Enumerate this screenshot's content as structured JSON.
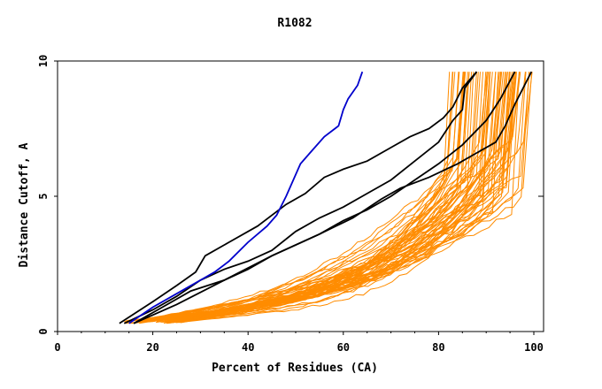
{
  "chart_data": {
    "type": "line",
    "title": "R1082",
    "xlabel": "Percent of Residues (CA)",
    "ylabel": "Distance Cutoff, A",
    "xlim": [
      0,
      102
    ],
    "ylim": [
      0,
      10
    ],
    "x_ticks": [
      0,
      20,
      40,
      60,
      80,
      100
    ],
    "y_ticks": [
      0,
      5,
      10
    ],
    "grid": false,
    "legend": "none",
    "colors": {
      "highlight": "#0000cc",
      "reference": "#000000",
      "models": "#ff8c00"
    },
    "series": [
      {
        "style": "highlight",
        "x": [
          15,
          20,
          25,
          30,
          33,
          36,
          40,
          44,
          46,
          48,
          51,
          53,
          56,
          59,
          60,
          61,
          63,
          64
        ],
        "y": [
          0.3,
          0.9,
          1.4,
          1.9,
          2.2,
          2.6,
          3.3,
          3.9,
          4.3,
          5.0,
          6.2,
          6.6,
          7.2,
          7.6,
          8.2,
          8.6,
          9.1,
          9.6
        ]
      },
      {
        "style": "reference",
        "x": [
          13,
          20,
          25,
          29,
          31,
          36,
          42,
          48,
          52,
          56,
          60,
          65,
          70,
          74,
          78,
          81,
          83,
          85,
          88
        ],
        "y": [
          0.3,
          1.1,
          1.7,
          2.2,
          2.8,
          3.3,
          3.9,
          4.7,
          5.1,
          5.7,
          6.0,
          6.3,
          6.8,
          7.2,
          7.5,
          7.9,
          8.3,
          9.0,
          9.6
        ]
      },
      {
        "style": "reference",
        "x": [
          14,
          20,
          25,
          30,
          35,
          40,
          45,
          50,
          55,
          60,
          65,
          70,
          75,
          80,
          83,
          85,
          85.5,
          88
        ],
        "y": [
          0.3,
          0.8,
          1.3,
          1.9,
          2.3,
          2.6,
          3.0,
          3.7,
          4.2,
          4.6,
          5.1,
          5.6,
          6.3,
          7.0,
          7.8,
          8.2,
          9.0,
          9.6
        ]
      },
      {
        "style": "reference",
        "x": [
          16,
          22,
          28,
          35,
          40,
          45,
          50,
          55,
          60,
          65,
          70,
          75,
          80,
          85,
          90,
          93,
          96
        ],
        "y": [
          0.3,
          0.9,
          1.5,
          1.9,
          2.3,
          2.8,
          3.2,
          3.6,
          4.1,
          4.5,
          5.0,
          5.6,
          6.2,
          6.9,
          7.8,
          8.6,
          9.6
        ]
      },
      {
        "style": "reference",
        "x": [
          16,
          25,
          35,
          45,
          55,
          62,
          68,
          72,
          78,
          84,
          88,
          92,
          94,
          96,
          99.5
        ],
        "y": [
          0.3,
          1.0,
          1.9,
          2.8,
          3.6,
          4.2,
          4.9,
          5.3,
          5.7,
          6.2,
          6.6,
          7.0,
          7.6,
          8.4,
          9.6
        ]
      }
    ],
    "model_curves": {
      "count": 62,
      "shape": "dense fan of orange curves rising from about 0.3 A at 14-25% of residues to about 9.6 A at 83-100% of residues, most of them staying below 4 A until past 80%"
    }
  }
}
